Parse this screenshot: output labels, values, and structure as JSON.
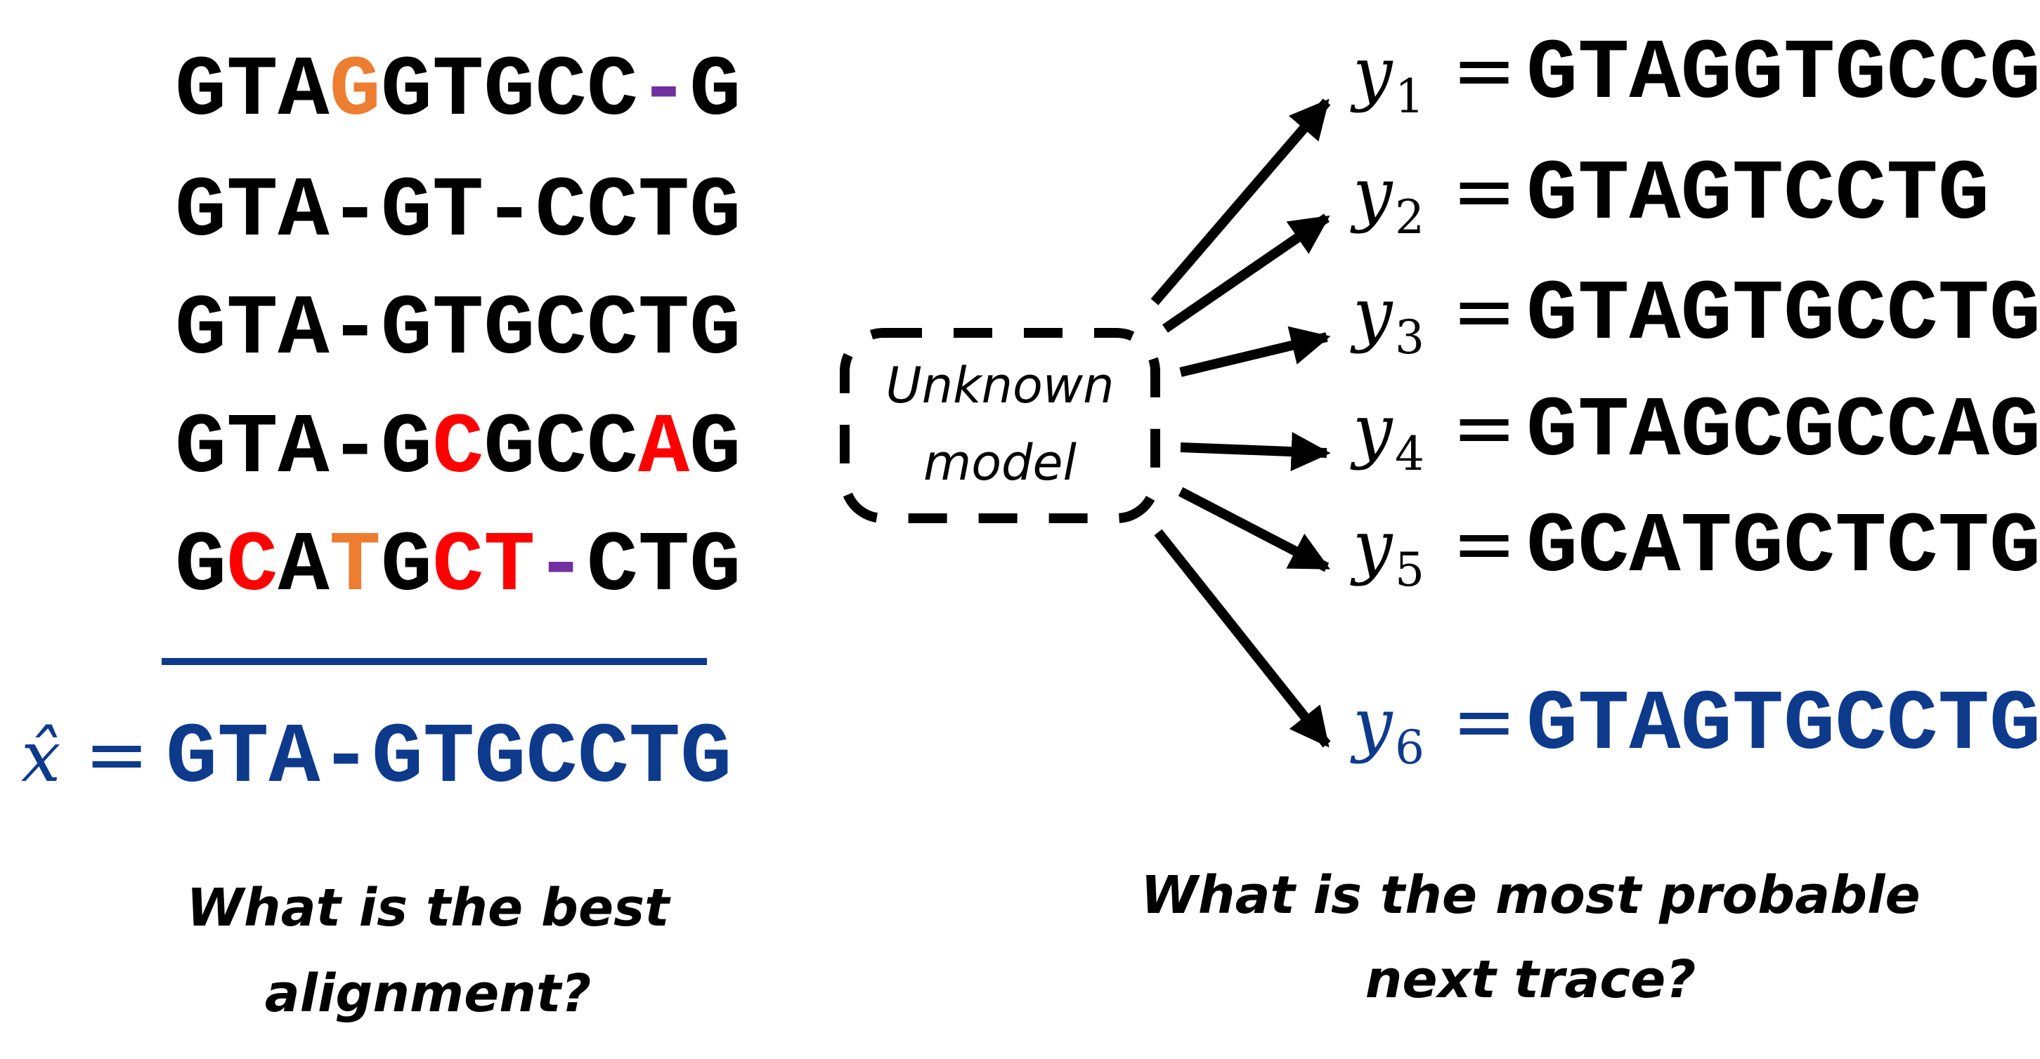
{
  "colors": {
    "default": "#000000",
    "orange": "#ED7D31",
    "red": "#FF0000",
    "purple": "#7030A0",
    "blue": "#0E3A8C"
  },
  "alignment": {
    "rows": [
      [
        {
          "t": "GTA"
        },
        {
          "t": "G",
          "c": "orange"
        },
        {
          "t": "GTGCC"
        },
        {
          "t": "-",
          "c": "purple"
        },
        {
          "t": "G"
        }
      ],
      [
        {
          "t": "GTA-GT-CCTG"
        }
      ],
      [
        {
          "t": "GTA-GTGCCTG"
        }
      ],
      [
        {
          "t": "GTA-G"
        },
        {
          "t": "C",
          "c": "red"
        },
        {
          "t": "GCC"
        },
        {
          "t": "A",
          "c": "red"
        },
        {
          "t": "G"
        }
      ],
      [
        {
          "t": "G"
        },
        {
          "t": "C",
          "c": "red"
        },
        {
          "t": "A"
        },
        {
          "t": "T",
          "c": "orange"
        },
        {
          "t": "G"
        },
        {
          "t": "CT",
          "c": "red"
        },
        {
          "t": "-",
          "c": "purple"
        },
        {
          "t": "CTG"
        }
      ]
    ],
    "consensus_symbol": "x̂",
    "equals": "=",
    "consensus": "GTA-GTGCCTG",
    "question_line1": "What is the best",
    "question_line2": "alignment?"
  },
  "model": {
    "line1": "Unknown",
    "line2": "model"
  },
  "traces": {
    "items": [
      {
        "var": "y",
        "sub": "1",
        "seq": "GTAGGTGCCG",
        "color": "default"
      },
      {
        "var": "y",
        "sub": "2",
        "seq": "GTAGTCCTG",
        "color": "default"
      },
      {
        "var": "y",
        "sub": "3",
        "seq": "GTAGTGCCTG",
        "color": "default"
      },
      {
        "var": "y",
        "sub": "4",
        "seq": "GTAGCGCCAG",
        "color": "default"
      },
      {
        "var": "y",
        "sub": "5",
        "seq": "GCATGCTCTG",
        "color": "default"
      },
      {
        "var": "y",
        "sub": "6",
        "seq": "GTAGTGCCTG",
        "color": "blue"
      }
    ],
    "equals": "=",
    "question_line1": "What is the most probable",
    "question_line2": "next trace?"
  }
}
